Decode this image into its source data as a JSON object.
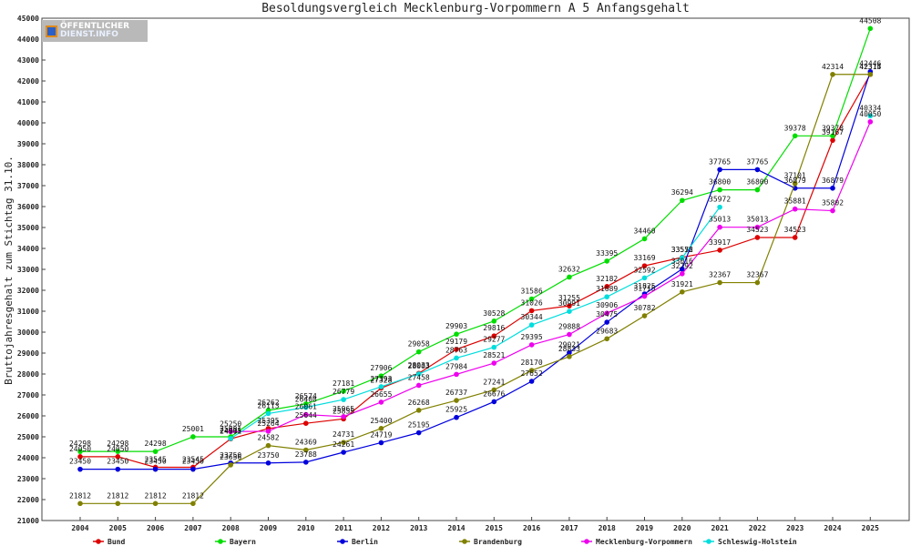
{
  "chart_data": {
    "type": "line",
    "title": "Besoldungsvergleich Mecklenburg-Vorpommern A 5 Anfangsgehalt",
    "ylabel": "Bruttojahresgehalt zum Stichtag 31.10.",
    "xlabel": "",
    "ylim": [
      21000,
      45000
    ],
    "y_ticks": [
      21000,
      22000,
      23000,
      24000,
      25000,
      26000,
      27000,
      28000,
      29000,
      30000,
      31000,
      32000,
      33000,
      34000,
      35000,
      36000,
      37000,
      38000,
      39000,
      40000,
      41000,
      42000,
      43000,
      44000,
      45000
    ],
    "categories": [
      "2004",
      "2005",
      "2006",
      "2007",
      "2008",
      "2009",
      "2010",
      "2011",
      "2012",
      "2013",
      "2014",
      "2015",
      "2016",
      "2017",
      "2018",
      "2019",
      "2020",
      "2021",
      "2022",
      "2023",
      "2024",
      "2025"
    ],
    "legend_position": "bottom",
    "series": [
      {
        "name": "Bund",
        "color": "#dd0000",
        "values": [
          24050,
          24050,
          23545,
          23545,
          24901,
          25395,
          25644,
          25855,
          27328,
          28033,
          29179,
          29816,
          31026,
          31255,
          32182,
          33169,
          33572,
          33917,
          34523,
          34523,
          39167,
          42315
        ]
      },
      {
        "name": "Bayern",
        "color": "#00dd00",
        "values": [
          24298,
          24298,
          24298,
          25001,
          25001,
          26262,
          26574,
          27181,
          27906,
          29058,
          29903,
          30528,
          31586,
          32632,
          33395,
          34460,
          36294,
          36800,
          36800,
          39378,
          39378,
          44508
        ]
      },
      {
        "name": "Berlin",
        "color": "#0000dd",
        "values": [
          23450,
          23450,
          23450,
          23450,
          23750,
          23750,
          23788,
          24261,
          24719,
          25195,
          25925,
          26676,
          27652,
          29021,
          30475,
          31825,
          33016,
          37765,
          37765,
          36879,
          36879,
          42446
        ]
      },
      {
        "name": "Brandenburg",
        "color": "#808000",
        "values": [
          21812,
          21812,
          21812,
          21812,
          23656,
          24582,
          24369,
          24731,
          25400,
          26268,
          26737,
          27241,
          28170,
          28833,
          29683,
          30782,
          31921,
          32367,
          32367,
          37101,
          42314,
          42314
        ]
      },
      {
        "name": "Mecklenburg-Vorpommern",
        "color": "#ee00ee",
        "values": [
          null,
          null,
          null,
          null,
          25250,
          25264,
          26061,
          25965,
          26655,
          27458,
          27984,
          28521,
          29395,
          29888,
          30906,
          31715,
          32792,
          35013,
          35013,
          35881,
          35802,
          40050
        ]
      },
      {
        "name": "Schleswig-Holstein",
        "color": "#00dddd",
        "values": [
          null,
          null,
          null,
          null,
          24915,
          26113,
          26408,
          26779,
          27393,
          28003,
          28763,
          29277,
          30344,
          30991,
          31689,
          32592,
          33555,
          35972,
          null,
          null,
          null,
          40334
        ]
      }
    ]
  },
  "logo": {
    "line1": "ÖFFENTLICHER",
    "line2": "DIENST.INFO"
  }
}
